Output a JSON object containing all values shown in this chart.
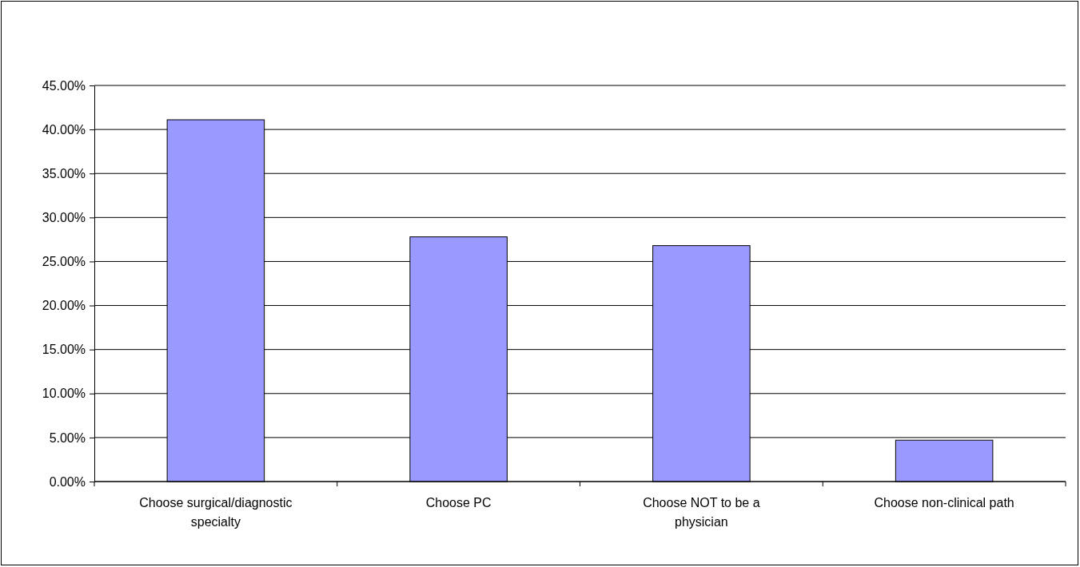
{
  "chart_data": {
    "type": "bar",
    "categories": [
      "Choose surgical/diagnostic specialty",
      "Choose PC",
      "Choose NOT to be a physician",
      "Choose non-clinical path"
    ],
    "values": [
      41.1,
      27.8,
      26.8,
      4.7
    ],
    "color": "#9999ff",
    "ylim": [
      0,
      45
    ],
    "yticks": [
      {
        "value": 0,
        "label": "0.00%"
      },
      {
        "value": 5,
        "label": "5.00%"
      },
      {
        "value": 10,
        "label": "10.00%"
      },
      {
        "value": 15,
        "label": "15.00%"
      },
      {
        "value": 20,
        "label": "20.00%"
      },
      {
        "value": 25,
        "label": "25.00%"
      },
      {
        "value": 30,
        "label": "30.00%"
      },
      {
        "value": 35,
        "label": "35.00%"
      },
      {
        "value": 40,
        "label": "40.00%"
      },
      {
        "value": 45,
        "label": "45.00%"
      }
    ],
    "grid": "y"
  }
}
